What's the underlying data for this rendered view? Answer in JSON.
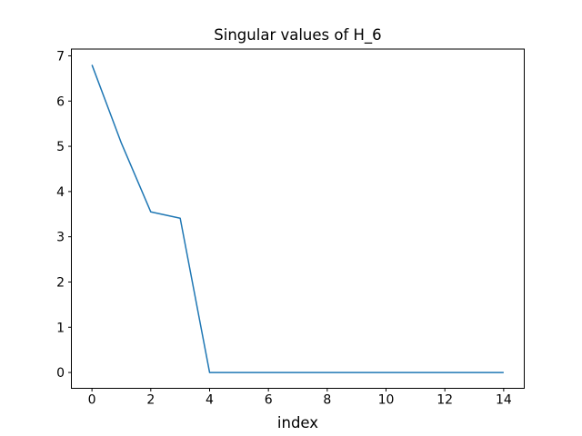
{
  "figure": {
    "background": "#ffffff"
  },
  "chart_data": {
    "type": "line",
    "title": "Singular values of H_6",
    "xlabel": "index",
    "ylabel": "",
    "x": [
      0,
      1,
      2,
      3,
      4,
      5,
      6,
      7,
      8,
      9,
      10,
      11,
      12,
      13,
      14
    ],
    "values": [
      6.8,
      5.07,
      3.55,
      3.41,
      0,
      0,
      0,
      0,
      0,
      0,
      0,
      0,
      0,
      0,
      0
    ],
    "series": [
      {
        "name": "singular values",
        "values": [
          6.8,
          5.07,
          3.55,
          3.41,
          0,
          0,
          0,
          0,
          0,
          0,
          0,
          0,
          0,
          0,
          0
        ]
      }
    ],
    "xticks": [
      0,
      2,
      4,
      6,
      8,
      10,
      12,
      14
    ],
    "yticks": [
      0,
      1,
      2,
      3,
      4,
      5,
      6,
      7
    ],
    "xlim": [
      -0.7,
      14.7
    ],
    "ylim": [
      -0.35,
      7.15
    ],
    "grid": false,
    "legend": "none",
    "line_color": "#1f77b4",
    "axis_color": "#000000",
    "background_color": "#ffffff"
  }
}
